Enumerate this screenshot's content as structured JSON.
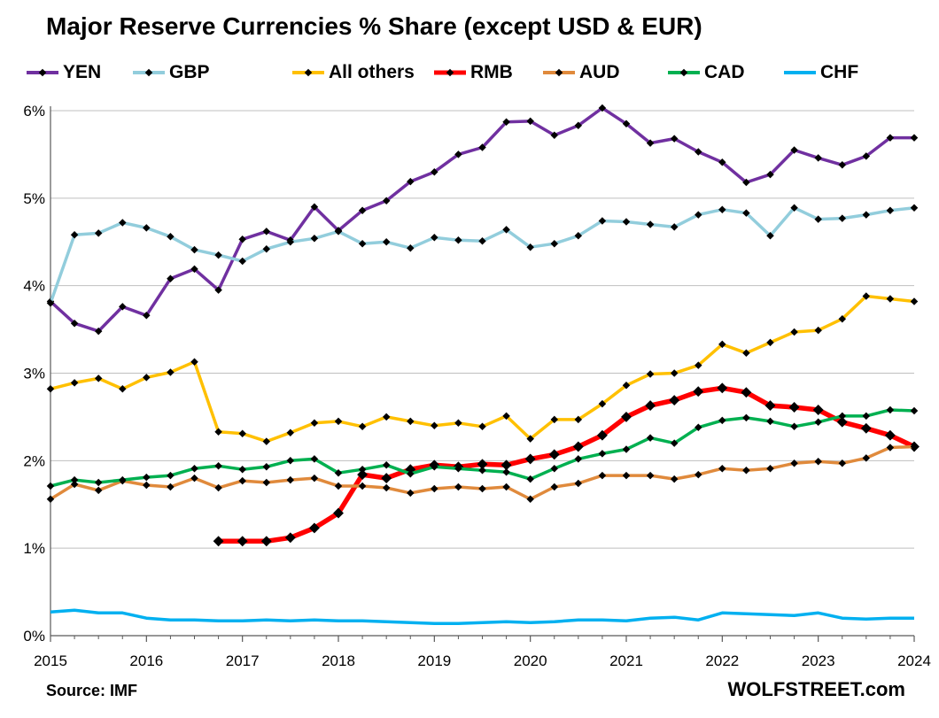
{
  "chart_data": {
    "type": "line",
    "title": "Major Reserve Currencies % Share (except USD & EUR)",
    "xlabel": "",
    "ylabel": "",
    "ylim": [
      0,
      6.0
    ],
    "xlim": [
      2015.0,
      2024.0
    ],
    "x_ticks": [
      "2015",
      "2016",
      "2017",
      "2018",
      "2019",
      "2020",
      "2021",
      "2022",
      "2023",
      "2024"
    ],
    "y_ticks": [
      "0%",
      "1%",
      "2%",
      "3%",
      "4%",
      "5%",
      "6%"
    ],
    "grid": "horizontal",
    "legend_position": "top",
    "series": [
      {
        "name": "YEN",
        "color": "#7030a0",
        "markers": true,
        "values": [
          3.82,
          3.57,
          3.48,
          3.76,
          3.66,
          4.08,
          4.19,
          3.95,
          4.53,
          4.62,
          4.52,
          4.9,
          4.63,
          4.86,
          4.97,
          5.19,
          5.3,
          5.5,
          5.58,
          5.87,
          5.88,
          5.72,
          5.83,
          6.03,
          5.85,
          5.63,
          5.68,
          5.53,
          5.41,
          5.18,
          5.27,
          5.55,
          5.46,
          5.38,
          5.48,
          5.69,
          5.69
        ]
      },
      {
        "name": "GBP",
        "color": "#92cddc",
        "markers": true,
        "values": [
          3.8,
          4.58,
          4.6,
          4.72,
          4.66,
          4.56,
          4.41,
          4.35,
          4.28,
          4.42,
          4.5,
          4.54,
          4.62,
          4.48,
          4.5,
          4.43,
          4.55,
          4.52,
          4.51,
          4.64,
          4.44,
          4.48,
          4.57,
          4.74,
          4.73,
          4.7,
          4.67,
          4.81,
          4.87,
          4.83,
          4.57,
          4.89,
          4.76,
          4.77,
          4.81,
          4.86,
          4.89
        ]
      },
      {
        "name": "All others",
        "color": "#ffc000",
        "markers": true,
        "values": [
          2.82,
          2.89,
          2.94,
          2.82,
          2.95,
          3.01,
          3.13,
          2.33,
          2.31,
          2.22,
          2.32,
          2.43,
          2.45,
          2.39,
          2.5,
          2.45,
          2.4,
          2.43,
          2.39,
          2.51,
          2.25,
          2.47,
          2.47,
          2.65,
          2.86,
          2.99,
          3.0,
          3.09,
          3.33,
          3.23,
          3.35,
          3.47,
          3.49,
          3.62,
          3.88,
          3.85,
          3.82
        ]
      },
      {
        "name": "RMB",
        "color": "#ff0000",
        "markers": true,
        "values": [
          null,
          null,
          null,
          null,
          null,
          null,
          null,
          1.08,
          1.08,
          1.08,
          1.12,
          1.23,
          1.4,
          1.84,
          1.8,
          1.9,
          1.95,
          1.93,
          1.96,
          1.95,
          2.02,
          2.07,
          2.16,
          2.29,
          2.5,
          2.63,
          2.69,
          2.79,
          2.83,
          2.78,
          2.63,
          2.61,
          2.58,
          2.44,
          2.37,
          2.29,
          2.16
        ]
      },
      {
        "name": "AUD",
        "color": "#e08a3c",
        "markers": true,
        "values": [
          1.56,
          1.73,
          1.66,
          1.77,
          1.72,
          1.7,
          1.8,
          1.69,
          1.77,
          1.75,
          1.78,
          1.8,
          1.71,
          1.71,
          1.69,
          1.63,
          1.68,
          1.7,
          1.68,
          1.7,
          1.56,
          1.7,
          1.74,
          1.83,
          1.83,
          1.83,
          1.79,
          1.84,
          1.91,
          1.89,
          1.91,
          1.97,
          1.99,
          1.97,
          2.03,
          2.15,
          2.16
        ]
      },
      {
        "name": "CAD",
        "color": "#00b050",
        "markers": true,
        "values": [
          1.71,
          1.78,
          1.75,
          1.78,
          1.81,
          1.83,
          1.91,
          1.94,
          1.9,
          1.93,
          2.0,
          2.02,
          1.86,
          1.9,
          1.95,
          1.85,
          1.93,
          1.91,
          1.89,
          1.87,
          1.79,
          1.91,
          2.02,
          2.08,
          2.13,
          2.26,
          2.2,
          2.38,
          2.46,
          2.49,
          2.45,
          2.39,
          2.44,
          2.51,
          2.51,
          2.58,
          2.57
        ]
      },
      {
        "name": "CHF",
        "color": "#00b0f0",
        "markers": false,
        "values": [
          0.27,
          0.29,
          0.26,
          0.26,
          0.2,
          0.18,
          0.18,
          0.17,
          0.17,
          0.18,
          0.17,
          0.18,
          0.17,
          0.17,
          0.16,
          0.15,
          0.14,
          0.14,
          0.15,
          0.16,
          0.15,
          0.16,
          0.18,
          0.18,
          0.17,
          0.2,
          0.21,
          0.18,
          0.26,
          0.25,
          0.24,
          0.23,
          0.26,
          0.2,
          0.19,
          0.2,
          0.2
        ]
      }
    ]
  },
  "source_label": "Source: IMF",
  "brand_label": "WOLFSTREET.com"
}
